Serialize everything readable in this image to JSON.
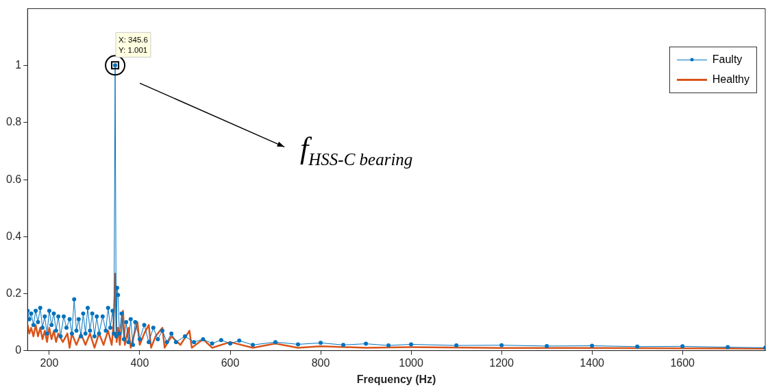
{
  "chart_data": {
    "type": "line",
    "xlabel": "Frequency (Hz)",
    "xlim": [
      152,
      1783
    ],
    "xticks": [
      200,
      400,
      600,
      800,
      1000,
      1200,
      1400,
      1600
    ],
    "ylim": [
      0,
      1.2
    ],
    "yticks": [
      0,
      0.2,
      0.4,
      0.6,
      0.8,
      1
    ],
    "grid": false,
    "legend": "top right",
    "series": [
      {
        "name": "Faulty",
        "color": "#0072bd",
        "marker": "circle",
        "x": [
          152,
          156,
          160,
          165,
          170,
          175,
          180,
          185,
          190,
          195,
          200,
          205,
          210,
          215,
          220,
          225,
          232,
          238,
          245,
          250,
          255,
          260,
          265,
          270,
          275,
          280,
          285,
          290,
          295,
          300,
          305,
          310,
          318,
          325,
          330,
          335,
          340,
          343,
          345.6,
          348,
          350,
          352,
          355,
          360,
          365,
          370,
          375,
          380,
          385,
          390,
          400,
          410,
          420,
          430,
          440,
          450,
          460,
          470,
          480,
          500,
          520,
          540,
          560,
          580,
          600,
          620,
          650,
          700,
          750,
          800,
          850,
          900,
          950,
          1000,
          1100,
          1200,
          1300,
          1400,
          1500,
          1600,
          1700,
          1783
        ],
        "values": [
          0.14,
          0.11,
          0.13,
          0.09,
          0.14,
          0.1,
          0.15,
          0.08,
          0.12,
          0.06,
          0.14,
          0.09,
          0.13,
          0.07,
          0.12,
          0.05,
          0.12,
          0.08,
          0.11,
          0.06,
          0.18,
          0.07,
          0.11,
          0.05,
          0.13,
          0.06,
          0.15,
          0.07,
          0.13,
          0.05,
          0.12,
          0.06,
          0.12,
          0.07,
          0.15,
          0.08,
          0.14,
          0.06,
          1.001,
          0.05,
          0.22,
          0.195,
          0.06,
          0.13,
          0.04,
          0.1,
          0.03,
          0.11,
          0.02,
          0.1,
          0.04,
          0.09,
          0.03,
          0.08,
          0.04,
          0.07,
          0.03,
          0.06,
          0.03,
          0.05,
          0.03,
          0.04,
          0.025,
          0.037,
          0.025,
          0.035,
          0.02,
          0.03,
          0.022,
          0.027,
          0.02,
          0.024,
          0.018,
          0.022,
          0.018,
          0.019,
          0.016,
          0.017,
          0.014,
          0.015,
          0.012,
          0.01
        ]
      },
      {
        "name": "Healthy",
        "color": "#d95319",
        "marker": "none",
        "x": [
          152,
          156,
          160,
          165,
          170,
          175,
          180,
          185,
          190,
          195,
          200,
          205,
          210,
          215,
          220,
          230,
          240,
          245,
          250,
          260,
          270,
          280,
          290,
          300,
          310,
          320,
          330,
          338,
          342,
          346,
          349,
          352,
          356,
          363,
          367,
          375,
          380,
          395,
          400,
          410,
          420,
          425,
          435,
          450,
          455,
          470,
          490,
          510,
          515,
          540,
          560,
          600,
          650,
          700,
          750,
          800,
          900,
          1000,
          1200,
          1400,
          1600,
          1783
        ],
        "values": [
          0.09,
          0.06,
          0.08,
          0.05,
          0.09,
          0.05,
          0.08,
          0.04,
          0.07,
          0.03,
          0.08,
          0.04,
          0.07,
          0.03,
          0.06,
          0.03,
          0.06,
          0.01,
          0.06,
          0.02,
          0.06,
          0.02,
          0.06,
          0.01,
          0.06,
          0.02,
          0.07,
          0.02,
          0.09,
          0.27,
          0.03,
          0.08,
          0.02,
          0.14,
          0.02,
          0.08,
          0.01,
          0.1,
          0.02,
          0.06,
          0.09,
          0.01,
          0.05,
          0.08,
          0.01,
          0.05,
          0.02,
          0.07,
          0.01,
          0.04,
          0.01,
          0.03,
          0.01,
          0.025,
          0.01,
          0.015,
          0.01,
          0.012,
          0.009,
          0.009,
          0.008,
          0.007
        ]
      }
    ],
    "annotations": [
      {
        "text": "X: 345.6",
        "x": 345.6,
        "y": 1.001
      },
      {
        "text": "Y: 1.001",
        "x": 345.6,
        "y": 1.001
      },
      "f$_{HSS-C bearing}$"
    ]
  }
}
